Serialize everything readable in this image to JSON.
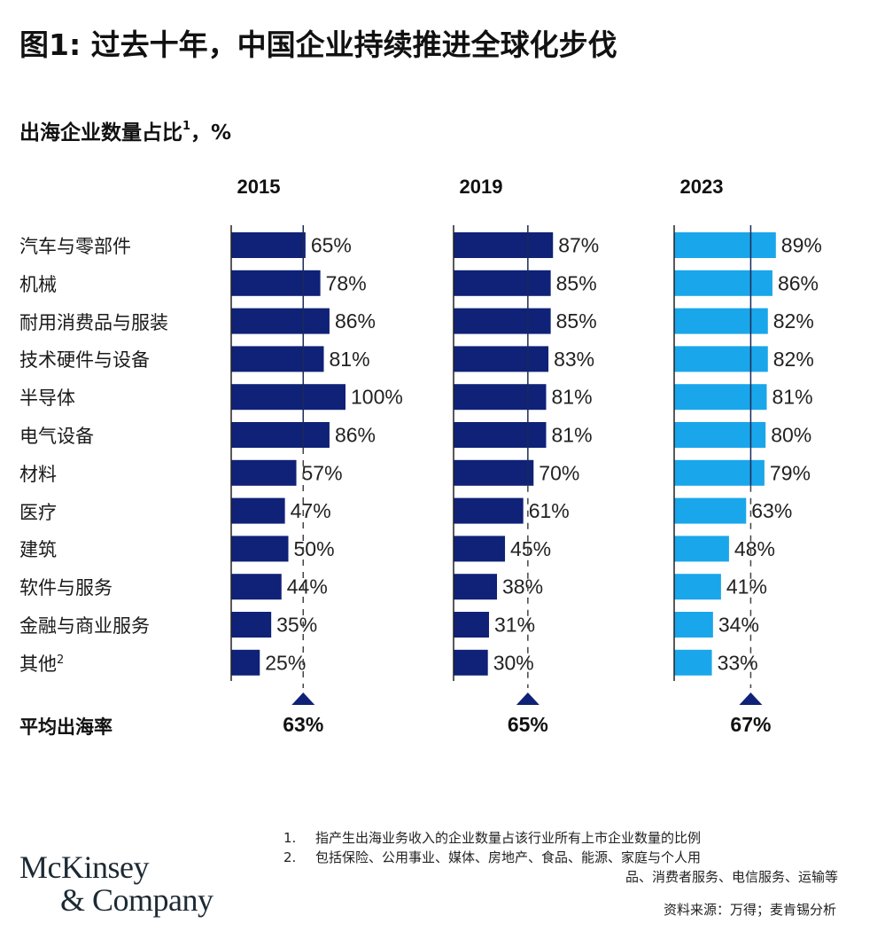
{
  "title": "图1: 过去十年，中国企业持续推进全球化步伐",
  "subtitle": {
    "text": "出海企业数量占比",
    "sup": "1",
    "unit": "，%"
  },
  "chart_data": {
    "type": "bar",
    "orientation": "horizontal",
    "title": "图1: 过去十年，中国企业持续推进全球化步伐",
    "ylabel": "出海企业数量占比1，%",
    "xlim": [
      0,
      100
    ],
    "categories": [
      "汽车与零部件",
      "机械",
      "耐用消费品与服装",
      "技术硬件与设备",
      "半导体",
      "电气设备",
      "材料",
      "医疗",
      "建筑",
      "软件与服务",
      "金融与商业服务",
      "其他"
    ],
    "category_sup": [
      "",
      "",
      "",
      "",
      "",
      "",
      "",
      "",
      "",
      "",
      "",
      "2"
    ],
    "series": [
      {
        "name": "2015",
        "color": "#0f2277",
        "values": [
          65,
          78,
          86,
          81,
          100,
          86,
          57,
          47,
          50,
          44,
          35,
          25
        ],
        "average": 63
      },
      {
        "name": "2019",
        "color": "#0f2277",
        "values": [
          87,
          85,
          85,
          83,
          81,
          81,
          70,
          61,
          45,
          38,
          31,
          30
        ],
        "average": 65
      },
      {
        "name": "2023",
        "color": "#1aa6ea",
        "values": [
          89,
          86,
          82,
          82,
          81,
          80,
          79,
          63,
          48,
          41,
          34,
          33
        ],
        "average": 67
      }
    ],
    "average_label": "平均出海率",
    "average_marker_color": "#0f2277",
    "value_suffix": "%"
  },
  "footnotes": [
    {
      "num": "1.",
      "text": "指产生出海业务收入的企业数量占该行业所有上市企业数量的比例"
    },
    {
      "num": "2.",
      "text": "包括保险、公用事业、媒体、房地产、食品、能源、家庭与个人用",
      "cont": "品、消费者服务、电信服务、运输等"
    }
  ],
  "source": "资料来源：万得；麦肯锡分析",
  "logo": {
    "line1": "McKinsey",
    "line2": "& Company"
  }
}
